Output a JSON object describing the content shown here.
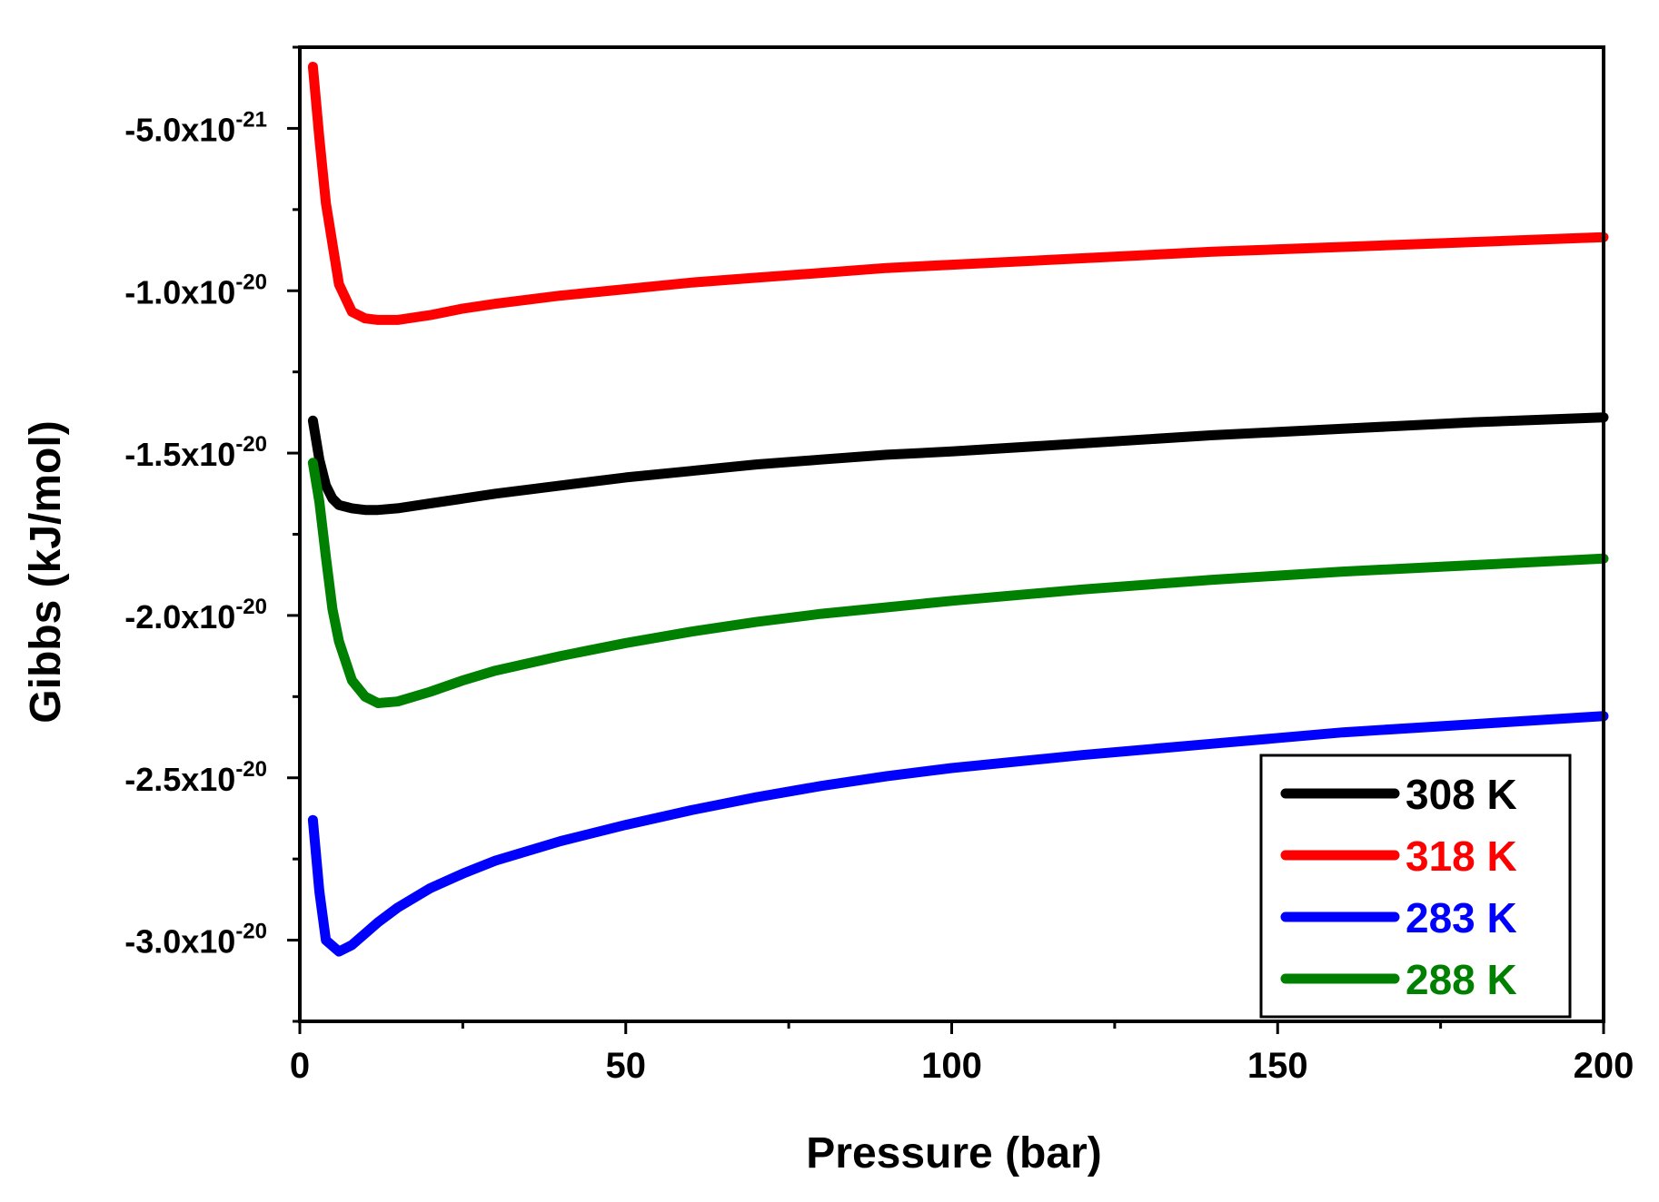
{
  "chart_data": {
    "type": "line",
    "title": "",
    "xlabel": "Pressure (bar)",
    "ylabel": "Gibbs (kJ/mol)",
    "xlim": [
      0,
      200
    ],
    "ylim": [
      -3.25e-20,
      -2.5e-21
    ],
    "x_ticks": [
      {
        "value": 0,
        "label": "0"
      },
      {
        "value": 50,
        "label": "50"
      },
      {
        "value": 100,
        "label": "100"
      },
      {
        "value": 150,
        "label": "150"
      },
      {
        "value": 200,
        "label": "200"
      }
    ],
    "y_ticks": [
      {
        "value": -5e-21,
        "mantissa": "-5.0x10",
        "exponent": "-21"
      },
      {
        "value": -1e-20,
        "mantissa": "-1.0x10",
        "exponent": "-20"
      },
      {
        "value": -1.5e-20,
        "mantissa": "-1.5x10",
        "exponent": "-20"
      },
      {
        "value": -2e-20,
        "mantissa": "-2.0x10",
        "exponent": "-20"
      },
      {
        "value": -2.5e-20,
        "mantissa": "-2.5x10",
        "exponent": "-20"
      },
      {
        "value": -3e-20,
        "mantissa": "-3.0x10",
        "exponent": "-20"
      }
    ],
    "legend_position": "bottom-right",
    "series": [
      {
        "name": "308 K",
        "color": "#000000",
        "x": [
          2,
          3,
          4,
          5,
          6,
          8,
          10,
          12,
          15,
          20,
          25,
          30,
          40,
          50,
          60,
          70,
          80,
          90,
          100,
          120,
          140,
          160,
          180,
          200
        ],
        "y": [
          -1.4e-20,
          -1.52e-20,
          -1.6e-20,
          -1.64e-20,
          -1.66e-20,
          -1.67e-20,
          -1.675e-20,
          -1.675e-20,
          -1.67e-20,
          -1.655e-20,
          -1.64e-20,
          -1.625e-20,
          -1.6e-20,
          -1.575e-20,
          -1.555e-20,
          -1.535e-20,
          -1.52e-20,
          -1.505e-20,
          -1.495e-20,
          -1.47e-20,
          -1.445e-20,
          -1.425e-20,
          -1.405e-20,
          -1.39e-20
        ]
      },
      {
        "name": "318 K",
        "color": "#ff0000",
        "x": [
          2,
          3,
          4,
          6,
          8,
          10,
          12,
          15,
          20,
          25,
          30,
          40,
          50,
          60,
          70,
          80,
          90,
          100,
          120,
          140,
          160,
          180,
          200
        ],
        "y": [
          -3.1e-21,
          -5.3e-21,
          -7.3e-21,
          -9.8e-21,
          -1.065e-20,
          -1.085e-20,
          -1.09e-20,
          -1.09e-20,
          -1.075e-20,
          -1.055e-20,
          -1.04e-20,
          -1.015e-20,
          -9.95e-21,
          -9.75e-21,
          -9.6e-21,
          -9.45e-21,
          -9.3e-21,
          -9.2e-21,
          -9e-21,
          -8.8e-21,
          -8.65e-21,
          -8.5e-21,
          -8.35e-21
        ]
      },
      {
        "name": "283 K",
        "color": "#0000ff",
        "x": [
          2,
          3,
          4,
          6,
          8,
          10,
          12,
          15,
          20,
          25,
          30,
          40,
          50,
          60,
          70,
          80,
          90,
          100,
          120,
          140,
          160,
          180,
          200
        ],
        "y": [
          -2.63e-20,
          -2.85e-20,
          -3e-20,
          -3.035e-20,
          -3.015e-20,
          -2.98e-20,
          -2.945e-20,
          -2.9e-20,
          -2.84e-20,
          -2.795e-20,
          -2.755e-20,
          -2.695e-20,
          -2.645e-20,
          -2.6e-20,
          -2.56e-20,
          -2.525e-20,
          -2.495e-20,
          -2.47e-20,
          -2.43e-20,
          -2.395e-20,
          -2.36e-20,
          -2.335e-20,
          -2.31e-20
        ]
      },
      {
        "name": "288 K",
        "color": "#008000",
        "x": [
          2,
          3,
          4,
          5,
          6,
          8,
          10,
          12,
          15,
          20,
          25,
          30,
          40,
          50,
          60,
          70,
          80,
          90,
          100,
          120,
          140,
          160,
          180,
          200
        ],
        "y": [
          -1.53e-20,
          -1.65e-20,
          -1.82e-20,
          -1.98e-20,
          -2.08e-20,
          -2.2e-20,
          -2.25e-20,
          -2.27e-20,
          -2.265e-20,
          -2.235e-20,
          -2.2e-20,
          -2.17e-20,
          -2.125e-20,
          -2.085e-20,
          -2.05e-20,
          -2.02e-20,
          -1.995e-20,
          -1.975e-20,
          -1.955e-20,
          -1.92e-20,
          -1.89e-20,
          -1.865e-20,
          -1.845e-20,
          -1.825e-20
        ]
      }
    ]
  }
}
